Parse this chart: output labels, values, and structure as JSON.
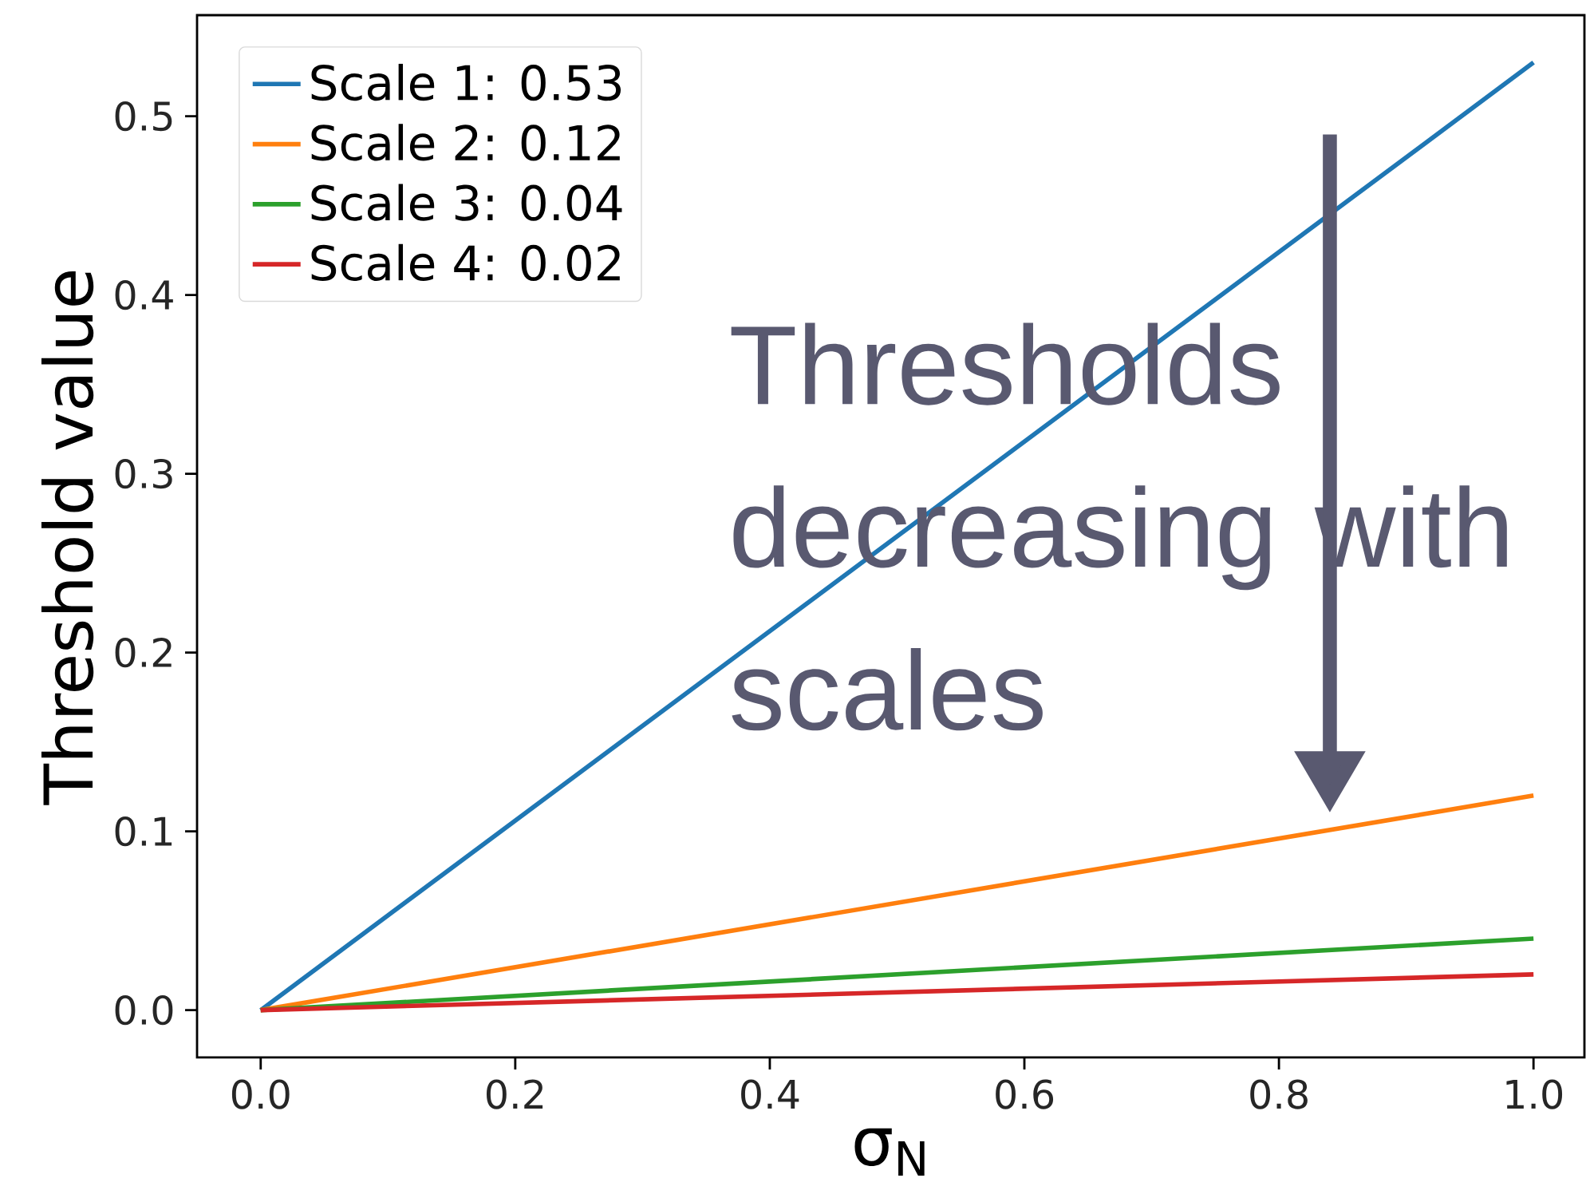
{
  "chart_data": {
    "type": "line",
    "xlabel": "σ$_{N}$",
    "ylabel": "Threshold value",
    "x": [
      0,
      1
    ],
    "series": [
      {
        "name": "Scale 1: 0.53",
        "color": "#1f77b4",
        "values": [
          0,
          0.53
        ]
      },
      {
        "name": "Scale 2: 0.12",
        "color": "#ff7f0e",
        "values": [
          0,
          0.12
        ]
      },
      {
        "name": "Scale 3: 0.04",
        "color": "#2ca02c",
        "values": [
          0,
          0.04
        ]
      },
      {
        "name": "Scale 4: 0.02",
        "color": "#d62728",
        "values": [
          0,
          0.02
        ]
      }
    ],
    "xlim": [
      -0.05,
      1.04
    ],
    "ylim": [
      -0.0265,
      0.5565
    ],
    "xticks": [
      {
        "value": 0,
        "label": "0.0"
      },
      0.2,
      0.4,
      0.6,
      0.8,
      {
        "value": 1,
        "label": "1.0"
      }
    ],
    "yticks": [
      {
        "value": 0,
        "label": "0.0"
      },
      0.1,
      0.2,
      0.3,
      0.4,
      0.5
    ],
    "legend": "top left",
    "annotations": [
      "Thresholds decreasing with scales"
    ]
  }
}
